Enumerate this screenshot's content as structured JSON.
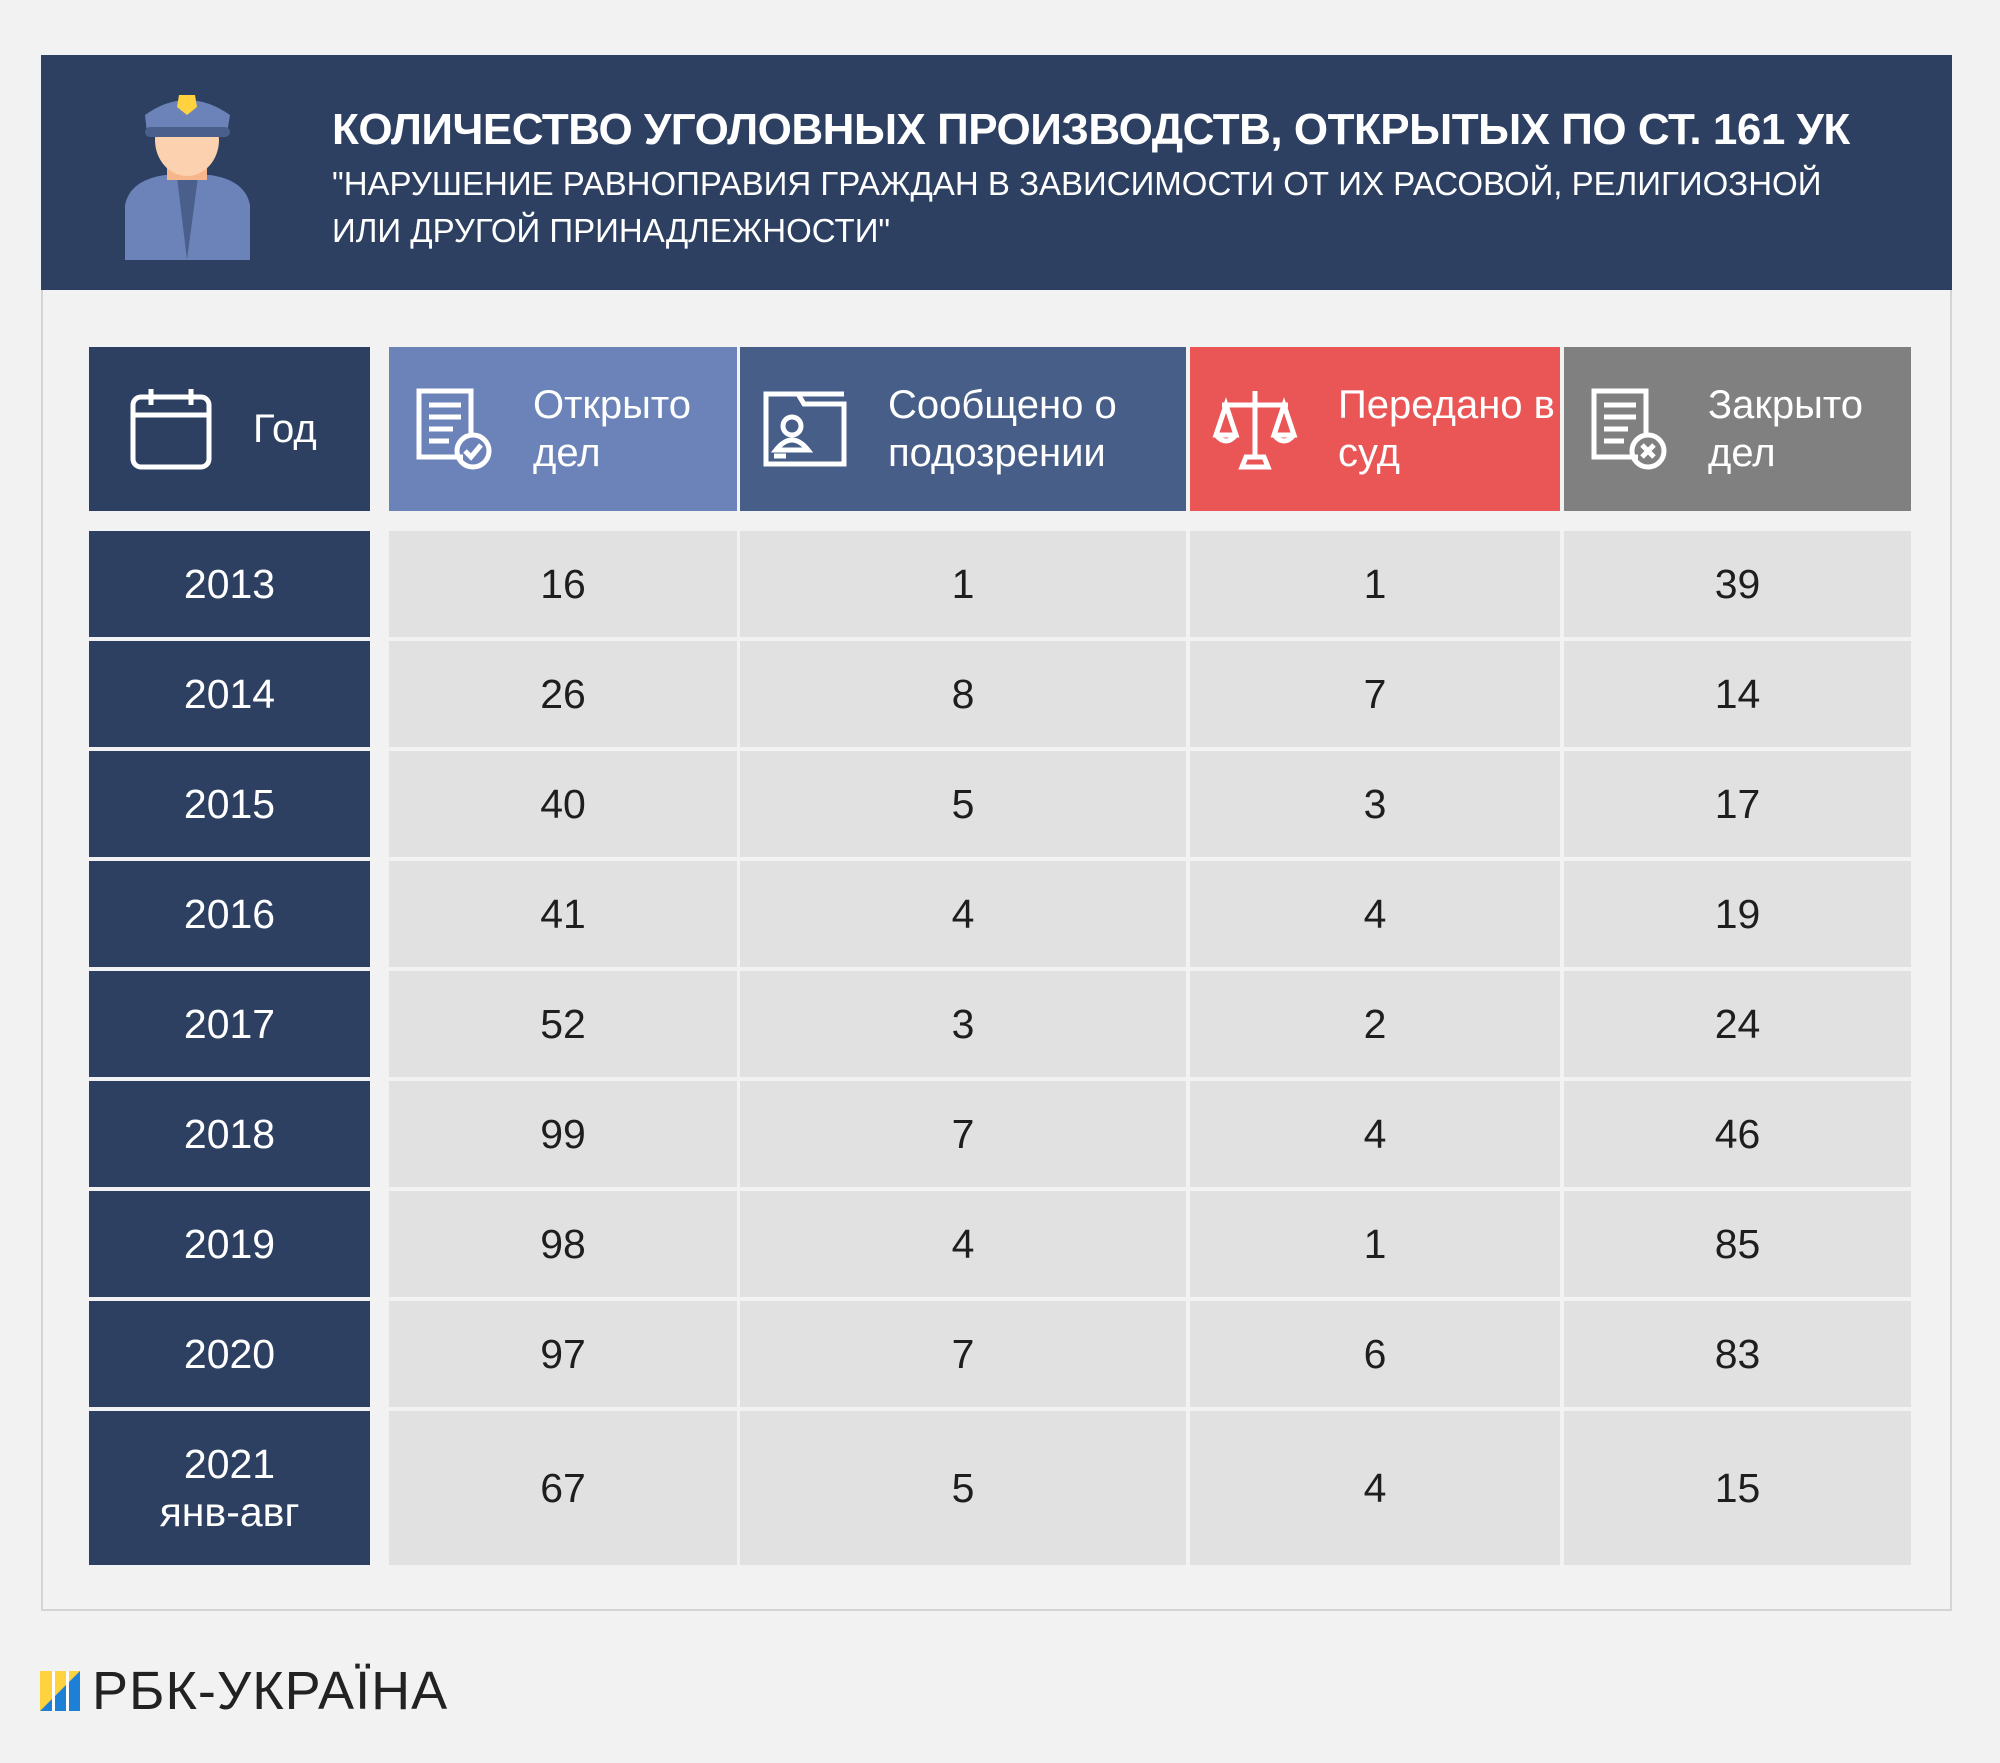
{
  "header": {
    "title": "КОЛИЧЕСТВО УГОЛОВНЫХ ПРОИЗВОДСТВ, ОТКРЫТЫХ ПО СТ. 161 УК",
    "subtitle": "\"НАРУШЕНИЕ РАВНОПРАВИЯ ГРАЖДАН В ЗАВИСИМОСТИ ОТ ИХ РАСОВОЙ, РЕЛИГИОЗНОЙ ИЛИ ДРУГОЙ ПРИНАДЛЕЖНОСТИ\"",
    "icon": "police-officer-icon"
  },
  "colors": {
    "banner": "#2d4062",
    "year": "#2d4062",
    "opened": "#6b83b8",
    "suspicion": "#465e88",
    "court": "#ea5656",
    "closed": "#808080",
    "cell": "#e1e1e1"
  },
  "table": {
    "columns": [
      {
        "label": "Год",
        "icon": "calendar-icon"
      },
      {
        "label": "Открыто дел",
        "icon": "document-check-icon"
      },
      {
        "label": "Сообщено о подозрении",
        "icon": "folder-person-icon"
      },
      {
        "label": "Передано в суд",
        "icon": "scales-icon"
      },
      {
        "label": "Закрыто дел",
        "icon": "document-x-icon"
      }
    ],
    "rows": [
      [
        "2013",
        "16",
        "1",
        "1",
        "39"
      ],
      [
        "2014",
        "26",
        "8",
        "7",
        "14"
      ],
      [
        "2015",
        "40",
        "5",
        "3",
        "17"
      ],
      [
        "2016",
        "41",
        "4",
        "4",
        "19"
      ],
      [
        "2017",
        "52",
        "3",
        "2",
        "24"
      ],
      [
        "2018",
        "99",
        "7",
        "4",
        "46"
      ],
      [
        "2019",
        "98",
        "4",
        "1",
        "85"
      ],
      [
        "2020",
        "97",
        "7",
        "6",
        "83"
      ],
      [
        "2021 янв-авг",
        "67",
        "5",
        "4",
        "15"
      ]
    ]
  },
  "footer": {
    "logo": "РБК-УКРАЇНА"
  }
}
